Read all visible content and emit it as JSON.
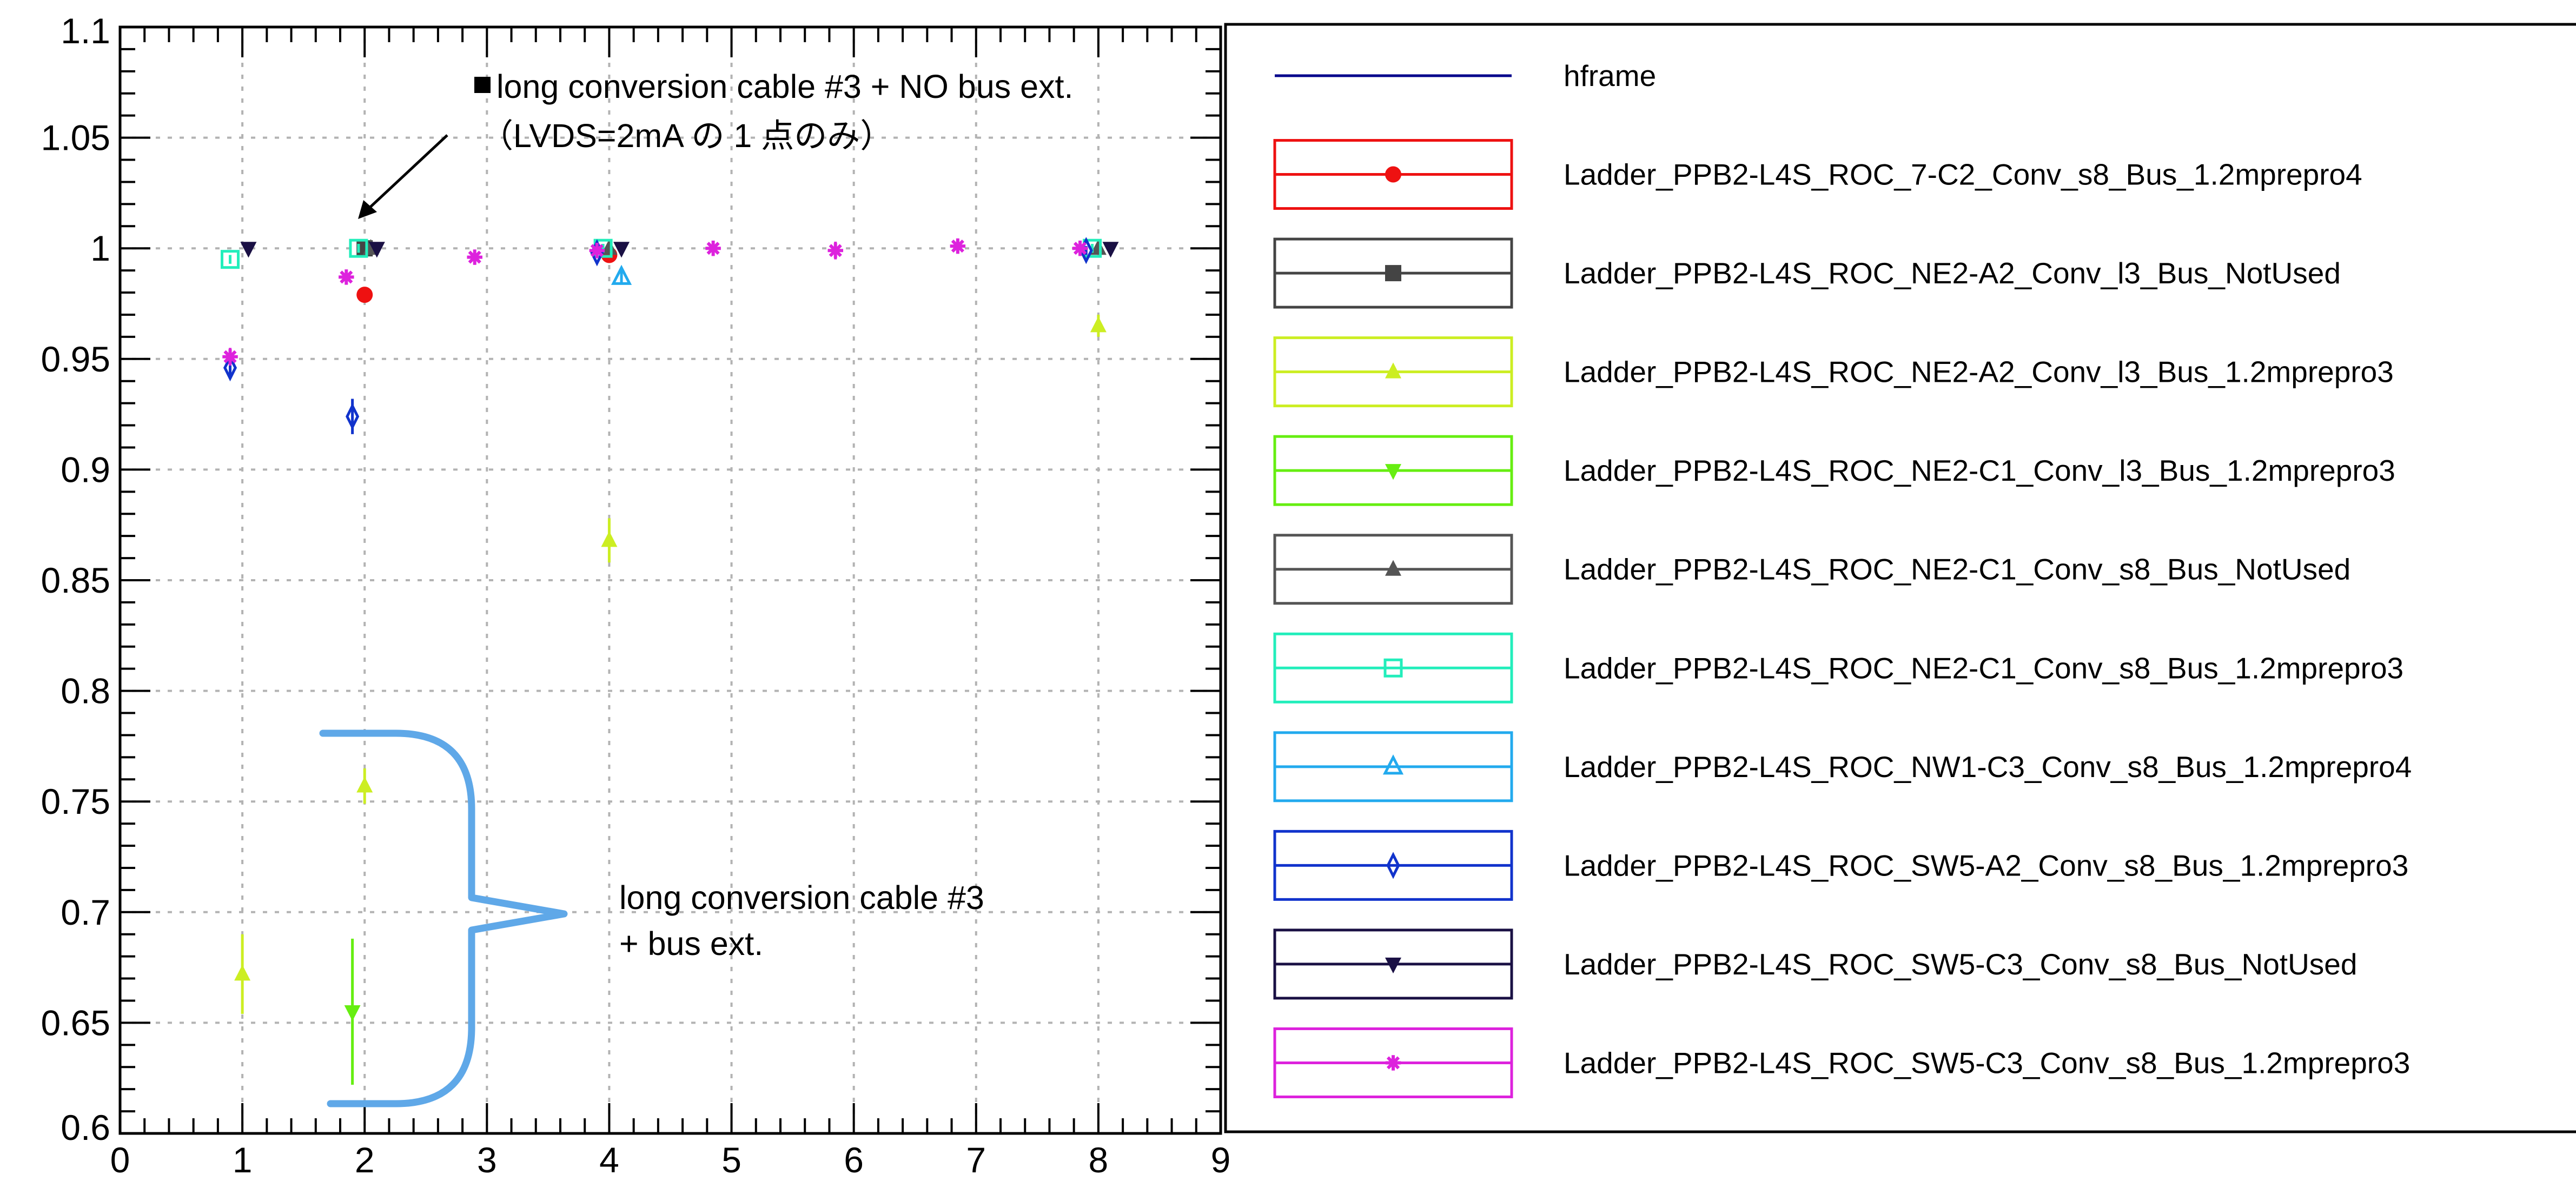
{
  "chart_data": {
    "type": "scatter",
    "xlim": [
      0,
      9
    ],
    "ylim": [
      0.6,
      1.1
    ],
    "grid": true,
    "legend_position": "right",
    "x_ticks": [
      0,
      1,
      2,
      3,
      4,
      5,
      6,
      7,
      8,
      9
    ],
    "y_ticks": [
      0.6,
      0.65,
      0.7,
      0.75,
      0.8,
      0.85,
      0.9,
      0.95,
      1,
      1.05,
      1.1
    ],
    "x_tick_labels": [
      "0",
      "1",
      "2",
      "3",
      "4",
      "5",
      "6",
      "7",
      "8",
      "9"
    ],
    "y_tick_labels": [
      "0.6",
      "0.65",
      "0.7",
      "0.75",
      "0.8",
      "0.85",
      "0.9",
      "0.95",
      "1",
      "1.05",
      "1.1"
    ],
    "series": [
      {
        "name": "hframe",
        "color": "#00008b",
        "marker": "none",
        "points": []
      },
      {
        "name": "Ladder_PPB2-L4S_ROC_7-C2_Conv_s8_Bus_1.2mprepro4",
        "color": "#ee1111",
        "marker": "circle",
        "points": [
          {
            "x": 2.0,
            "y": 0.979,
            "err": 0.002
          },
          {
            "x": 4.0,
            "y": 0.997,
            "err": 0.002
          }
        ]
      },
      {
        "name": "Ladder_PPB2-L4S_ROC_NE2-A2_Conv_l3_Bus_NotUsed",
        "color": "#444444",
        "marker": "square",
        "points": [
          {
            "x": 2.0,
            "y": 1.0,
            "err": 0.002
          }
        ]
      },
      {
        "name": "Ladder_PPB2-L4S_ROC_NE2-A2_Conv_l3_Bus_1.2mprepro3",
        "color": "#ccee22",
        "marker": "triangle-up",
        "points": [
          {
            "x": 1.0,
            "y": 0.672,
            "err": 0.018
          },
          {
            "x": 2.0,
            "y": 0.757,
            "err": 0.008
          },
          {
            "x": 4.0,
            "y": 0.868,
            "err": 0.01
          },
          {
            "x": 8.0,
            "y": 0.965,
            "err": 0.005
          }
        ]
      },
      {
        "name": "Ladder_PPB2-L4S_ROC_NE2-C1_Conv_l3_Bus_1.2mprepro3",
        "color": "#66ee11",
        "marker": "triangle-down",
        "points": [
          {
            "x": 1.9,
            "y": 0.655,
            "err": 0.033
          }
        ]
      },
      {
        "name": "Ladder_PPB2-L4S_ROC_NE2-C1_Conv_s8_Bus_NotUsed",
        "color": "#555555",
        "marker": "triangle-up",
        "points": [
          {
            "x": 2.05,
            "y": 1.0,
            "err": 0.002
          },
          {
            "x": 4.0,
            "y": 1.0,
            "err": 0.002
          },
          {
            "x": 8.0,
            "y": 1.0,
            "err": 0.002
          }
        ]
      },
      {
        "name": "Ladder_PPB2-L4S_ROC_NE2-C1_Conv_s8_Bus_1.2mprepro3",
        "color": "#22eebb",
        "marker": "open-square",
        "points": [
          {
            "x": 0.9,
            "y": 0.995,
            "err": 0.002
          },
          {
            "x": 1.95,
            "y": 1.0,
            "err": 0.002
          },
          {
            "x": 3.95,
            "y": 1.0,
            "err": 0.002
          },
          {
            "x": 7.95,
            "y": 1.0,
            "err": 0.002
          }
        ]
      },
      {
        "name": "Ladder_PPB2-L4S_ROC_NW1-C3_Conv_s8_Bus_1.2mprepro4",
        "color": "#22aaee",
        "marker": "open-triangle",
        "points": [
          {
            "x": 4.1,
            "y": 0.987,
            "err": 0.003
          }
        ]
      },
      {
        "name": "Ladder_PPB2-L4S_ROC_SW5-A2_Conv_s8_Bus_1.2mprepro3",
        "color": "#1133cc",
        "marker": "open-diamond",
        "points": [
          {
            "x": 0.9,
            "y": 0.946,
            "err": 0.005
          },
          {
            "x": 1.9,
            "y": 0.924,
            "err": 0.008
          },
          {
            "x": 3.9,
            "y": 0.998,
            "err": 0.002
          },
          {
            "x": 7.9,
            "y": 0.999,
            "err": 0.002
          }
        ]
      },
      {
        "name": "Ladder_PPB2-L4S_ROC_SW5-C3_Conv_s8_Bus_NotUsed",
        "color": "#1a1044",
        "marker": "triangle-down",
        "points": [
          {
            "x": 1.05,
            "y": 1.0,
            "err": 0.002
          },
          {
            "x": 2.1,
            "y": 1.0,
            "err": 0.002
          },
          {
            "x": 4.1,
            "y": 1.0,
            "err": 0.002
          },
          {
            "x": 8.1,
            "y": 1.0,
            "err": 0.002
          }
        ]
      },
      {
        "name": "Ladder_PPB2-L4S_ROC_SW5-C3_Conv_s8_Bus_1.2mprepro3",
        "color": "#dd22dd",
        "marker": "star",
        "points": [
          {
            "x": 0.9,
            "y": 0.951,
            "err": 0.004
          },
          {
            "x": 1.85,
            "y": 0.987,
            "err": 0.003
          },
          {
            "x": 2.9,
            "y": 0.996,
            "err": 0.002
          },
          {
            "x": 3.9,
            "y": 0.999,
            "err": 0.002
          },
          {
            "x": 4.85,
            "y": 1.0,
            "err": 0.002
          },
          {
            "x": 5.85,
            "y": 0.999,
            "err": 0.004
          },
          {
            "x": 6.85,
            "y": 1.001,
            "err": 0.003
          },
          {
            "x": 7.85,
            "y": 1.0,
            "err": 0.002
          }
        ]
      }
    ],
    "annotations": [
      {
        "text": "long conversion cable #3 + NO bus ext.",
        "marker": "■"
      },
      {
        "text": "（LVDS=2mA の 1 点のみ）"
      },
      {
        "text": "long conversion cable #3",
        "color": "#000000"
      },
      {
        "text": "+ bus ext."
      }
    ]
  }
}
